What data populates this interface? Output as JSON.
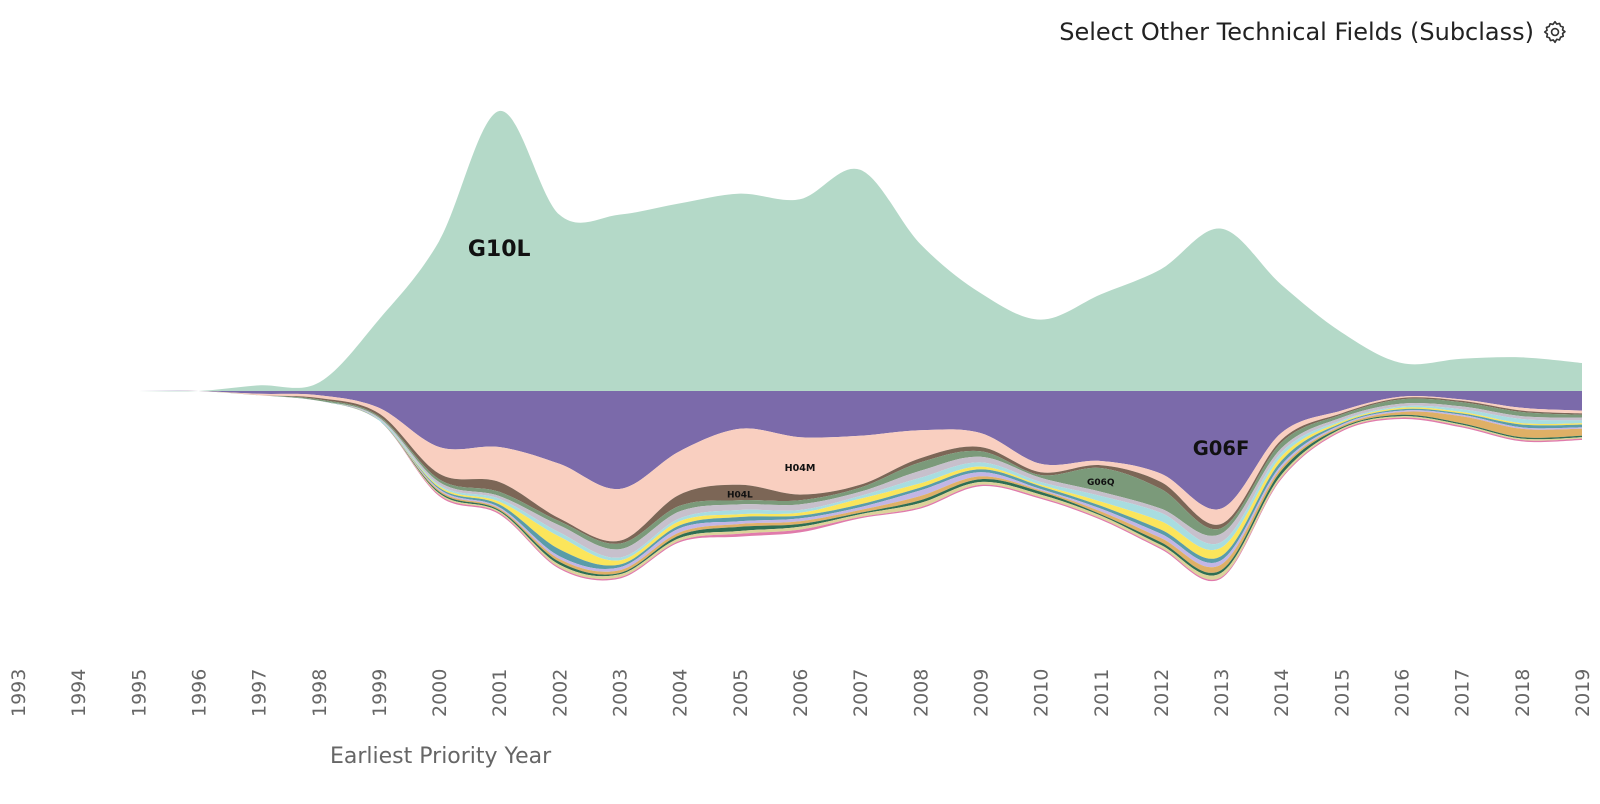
{
  "header": {
    "select_label": "Select Other Technical Fields (Subclass)",
    "settings_icon": "gear-icon"
  },
  "chart_data": {
    "type": "area",
    "layout": "streamgraph",
    "xlabel": "Earliest Priority Year",
    "ylabel": "",
    "categories": [
      1993,
      1994,
      1995,
      1996,
      1997,
      1998,
      1999,
      2000,
      2001,
      2002,
      2003,
      2004,
      2005,
      2006,
      2007,
      2008,
      2009,
      2010,
      2011,
      2012,
      2013,
      2014,
      2015,
      2016,
      2017,
      2018,
      2019
    ],
    "tick_labels": [
      "1993",
      "1994",
      "1995",
      "1996",
      "1997",
      "1998",
      "1999",
      "2000",
      "2001",
      "2002",
      "2003",
      "2004",
      "2005",
      "2006",
      "2007",
      "2008",
      "2009",
      "2010",
      "2011",
      "2012",
      "2013",
      "2014",
      "2015",
      "2016",
      "2017",
      "2018",
      "2019"
    ],
    "series": [
      {
        "name": "G10L",
        "label_visible": true,
        "color": "#b4d9c8",
        "values": [
          0,
          0,
          0,
          0,
          0.4,
          0.6,
          5.1,
          10.7,
          20.0,
          12.6,
          12.6,
          13.4,
          14.1,
          13.7,
          15.8,
          10.5,
          7.0,
          5.1,
          6.9,
          8.7,
          11.6,
          7.6,
          4.2,
          2.0,
          2.3,
          2.4,
          2.0
        ]
      },
      {
        "name": "G06F",
        "label_visible": true,
        "color": "#7b6aaa",
        "values": [
          0,
          0,
          0,
          0,
          0.2,
          0.3,
          1.2,
          4.0,
          4.0,
          5.2,
          7.0,
          4.3,
          2.7,
          3.3,
          3.2,
          2.8,
          3.0,
          5.2,
          5.0,
          5.9,
          8.4,
          3.0,
          1.4,
          0.4,
          0.6,
          1.2,
          1.4
        ]
      },
      {
        "name": "H04M",
        "label_visible": true,
        "color": "#f9cfc0",
        "values": [
          0,
          0,
          0,
          0,
          0.1,
          0.2,
          0.4,
          1.9,
          2.5,
          3.9,
          3.7,
          3.1,
          4.0,
          4.1,
          3.5,
          2.0,
          1.0,
          0.6,
          0.3,
          0.6,
          1.1,
          0.5,
          0.2,
          0.1,
          0.1,
          0.2,
          0.2
        ]
      },
      {
        "name": "H04L",
        "label_visible": true,
        "color": "#7c6656",
        "values": [
          0,
          0,
          0,
          0,
          0,
          0.1,
          0.2,
          0.4,
          0.7,
          0.2,
          0.2,
          0.8,
          1.1,
          0.4,
          0.2,
          0.3,
          0.3,
          0.2,
          0.2,
          0.5,
          0.3,
          0.2,
          0.1,
          0.1,
          0.1,
          0.1,
          0.1
        ]
      },
      {
        "name": "G06Q",
        "label_visible": true,
        "color": "#7b9a7a",
        "values": [
          0,
          0,
          0,
          0,
          0,
          0.1,
          0.1,
          0.2,
          0.3,
          0.3,
          0.4,
          0.4,
          0.3,
          0.3,
          0.3,
          0.6,
          0.4,
          0.2,
          1.7,
          1.4,
          0.4,
          0.4,
          0.2,
          0.3,
          0.3,
          0.3,
          0.2
        ]
      },
      {
        "name": "",
        "label_visible": false,
        "color": "#c7c0cc",
        "values": [
          0,
          0,
          0,
          0,
          0,
          0,
          0.1,
          0.2,
          0.2,
          0.5,
          0.6,
          0.5,
          0.4,
          0.4,
          0.3,
          0.5,
          0.4,
          0.3,
          0.3,
          0.3,
          0.6,
          0.3,
          0.2,
          0.2,
          0.2,
          0.2,
          0.2
        ]
      },
      {
        "name": "",
        "label_visible": false,
        "color": "#a8dde0",
        "values": [
          0,
          0,
          0,
          0,
          0,
          0,
          0.1,
          0.1,
          0.2,
          0.3,
          0.2,
          0.2,
          0.3,
          0.2,
          0.2,
          0.4,
          0.3,
          0.2,
          0.4,
          0.6,
          0.4,
          0.3,
          0.1,
          0.1,
          0.2,
          0.3,
          0.2
        ]
      },
      {
        "name": "",
        "label_visible": false,
        "color": "#fbe55b",
        "values": [
          0,
          0,
          0,
          0,
          0,
          0,
          0,
          0.1,
          0.2,
          0.9,
          0.3,
          0.3,
          0.2,
          0.2,
          0.4,
          0.3,
          0.2,
          0.1,
          0.3,
          0.6,
          0.6,
          0.3,
          0.1,
          0.1,
          0.1,
          0.1,
          0.1
        ]
      },
      {
        "name": "",
        "label_visible": false,
        "color": "#5a9ca8",
        "values": [
          0,
          0,
          0,
          0,
          0,
          0,
          0,
          0.1,
          0.2,
          0.5,
          0.2,
          0.2,
          0.3,
          0.2,
          0.2,
          0.2,
          0.2,
          0.2,
          0.2,
          0.3,
          0.3,
          0.3,
          0.1,
          0.1,
          0.1,
          0.2,
          0.2
        ]
      },
      {
        "name": "",
        "label_visible": false,
        "color": "#c2b6e6",
        "values": [
          0,
          0,
          0,
          0,
          0,
          0,
          0,
          0.1,
          0.1,
          0.2,
          0.2,
          0.3,
          0.2,
          0.2,
          0.2,
          0.4,
          0.3,
          0.1,
          0.2,
          0.3,
          0.3,
          0.2,
          0.1,
          0.1,
          0.1,
          0.1,
          0.1
        ]
      },
      {
        "name": "",
        "label_visible": false,
        "color": "#dfb066",
        "values": [
          0,
          0,
          0,
          0,
          0,
          0,
          0,
          0.1,
          0.1,
          0.2,
          0.2,
          0.2,
          0.2,
          0.2,
          0.2,
          0.3,
          0.2,
          0.1,
          0.2,
          0.3,
          0.4,
          0.2,
          0.1,
          0.2,
          0.5,
          0.6,
          0.5
        ]
      },
      {
        "name": "",
        "label_visible": false,
        "color": "#2f6e53",
        "values": [
          0,
          0,
          0,
          0,
          0,
          0,
          0,
          0.1,
          0.1,
          0.2,
          0.1,
          0.2,
          0.3,
          0.2,
          0.1,
          0.2,
          0.2,
          0.2,
          0.1,
          0.2,
          0.2,
          0.3,
          0.1,
          0.1,
          0.1,
          0.1,
          0.1
        ]
      },
      {
        "name": "",
        "label_visible": false,
        "color": "#dcd39a",
        "values": [
          0,
          0,
          0,
          0,
          0,
          0,
          0,
          0.1,
          0.1,
          0.2,
          0.2,
          0.2,
          0.2,
          0.2,
          0.2,
          0.3,
          0.2,
          0.2,
          0.2,
          0.2,
          0.3,
          0.2,
          0.1,
          0.1,
          0.1,
          0.1,
          0.1
        ]
      },
      {
        "name": "",
        "label_visible": false,
        "color": "#e07bab",
        "values": [
          0,
          0,
          0,
          0,
          0,
          0,
          0,
          0.1,
          0.1,
          0.1,
          0.1,
          0.1,
          0.2,
          0.2,
          0.1,
          0.1,
          0.1,
          0.1,
          0.1,
          0.1,
          0.1,
          0.1,
          0.1,
          0.1,
          0.1,
          0.1,
          0.1
        ]
      }
    ],
    "xlim": [
      1993,
      2019
    ],
    "grid": false,
    "legend": "none"
  }
}
